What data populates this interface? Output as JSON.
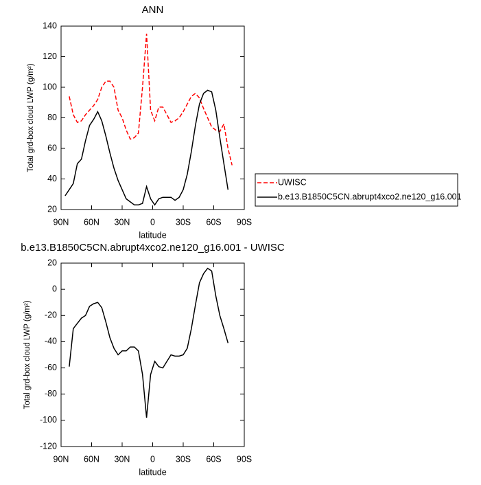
{
  "chart_data": [
    {
      "type": "line",
      "title": "ANN",
      "xlabel": "latitude",
      "ylabel": "Total grd-box cloud LWP (g/m²)",
      "x": [
        86,
        82,
        78,
        74,
        70,
        66,
        62,
        58,
        54,
        50,
        46,
        42,
        38,
        34,
        30,
        26,
        22,
        18,
        14,
        10,
        6,
        2,
        -2,
        -6,
        -10,
        -14,
        -18,
        -22,
        -26,
        -30,
        -34,
        -38,
        -42,
        -46,
        -50,
        -54,
        -58,
        -62,
        -66,
        -70,
        -74,
        -78
      ],
      "series": [
        {
          "name": "UWISC",
          "color": "#ff0000",
          "dashed": true,
          "values": [
            null,
            94,
            82,
            77,
            78,
            82,
            85,
            88,
            92,
            100,
            104,
            104,
            100,
            85,
            80,
            72,
            66,
            67,
            70,
            100,
            135,
            85,
            78,
            87,
            87,
            82,
            77,
            78,
            80,
            84,
            89,
            94,
            96,
            93,
            86,
            80,
            74,
            72,
            71,
            76,
            60,
            49
          ]
        },
        {
          "name": "b.e13.B1850C5CN.abrupt4xco2.ne120_g16.001",
          "color": "#000000",
          "dashed": false,
          "values": [
            29,
            33,
            37,
            50,
            53,
            65,
            75,
            79,
            84,
            78,
            68,
            57,
            47,
            39,
            33,
            27,
            25,
            23,
            23,
            24,
            35,
            27,
            23,
            27,
            28,
            28,
            28,
            26,
            28,
            33,
            43,
            58,
            75,
            89,
            96,
            98,
            97,
            85,
            67,
            50,
            33,
            null
          ]
        }
      ],
      "xlim": [
        90,
        -90
      ],
      "xticks": [
        {
          "value": 90,
          "label": "90N"
        },
        {
          "value": 60,
          "label": "60N"
        },
        {
          "value": 30,
          "label": "30N"
        },
        0,
        {
          "value": -30,
          "label": "30S"
        },
        {
          "value": -60,
          "label": "60S"
        },
        {
          "value": -90,
          "label": "90S"
        }
      ],
      "ylim": [
        20,
        140
      ],
      "yticks": [
        20,
        40,
        60,
        80,
        100,
        120,
        140
      ],
      "legend": "right"
    },
    {
      "type": "line",
      "title": "b.e13.B1850C5CN.abrupt4xco2.ne120_g16.001 - UWISC",
      "xlabel": "latitude",
      "ylabel": "Total grd-box cloud LWP (g/m²)",
      "x": [
        82,
        78,
        74,
        70,
        66,
        62,
        58,
        54,
        50,
        46,
        42,
        38,
        34,
        30,
        26,
        22,
        18,
        14,
        10,
        6,
        2,
        -2,
        -6,
        -10,
        -14,
        -18,
        -22,
        -26,
        -30,
        -34,
        -38,
        -42,
        -46,
        -50,
        -54,
        -58,
        -62,
        -66,
        -70,
        -74
      ],
      "series": [
        {
          "color": "#000000",
          "dashed": false,
          "values": [
            -59,
            -30,
            -26,
            -22,
            -20,
            -13,
            -11,
            -10,
            -14,
            -25,
            -37,
            -45,
            -50,
            -47,
            -47,
            -44,
            -44,
            -47,
            -65,
            -98,
            -65,
            -55,
            -59,
            -60,
            -55,
            -50,
            -51,
            -51,
            -50,
            -45,
            -30,
            -12,
            5,
            12,
            16,
            14,
            -5,
            -20,
            -30,
            -41
          ]
        }
      ],
      "xlim": [
        90,
        -90
      ],
      "xticks": [
        {
          "value": 90,
          "label": "90N"
        },
        {
          "value": 60,
          "label": "60N"
        },
        {
          "value": 30,
          "label": "30N"
        },
        0,
        {
          "value": -30,
          "label": "30S"
        },
        {
          "value": -60,
          "label": "60S"
        },
        {
          "value": -90,
          "label": "90S"
        }
      ],
      "ylim": [
        -120,
        20
      ],
      "yticks": [
        20,
        0,
        -20,
        -40,
        -60,
        -80,
        -100,
        -120
      ]
    }
  ]
}
